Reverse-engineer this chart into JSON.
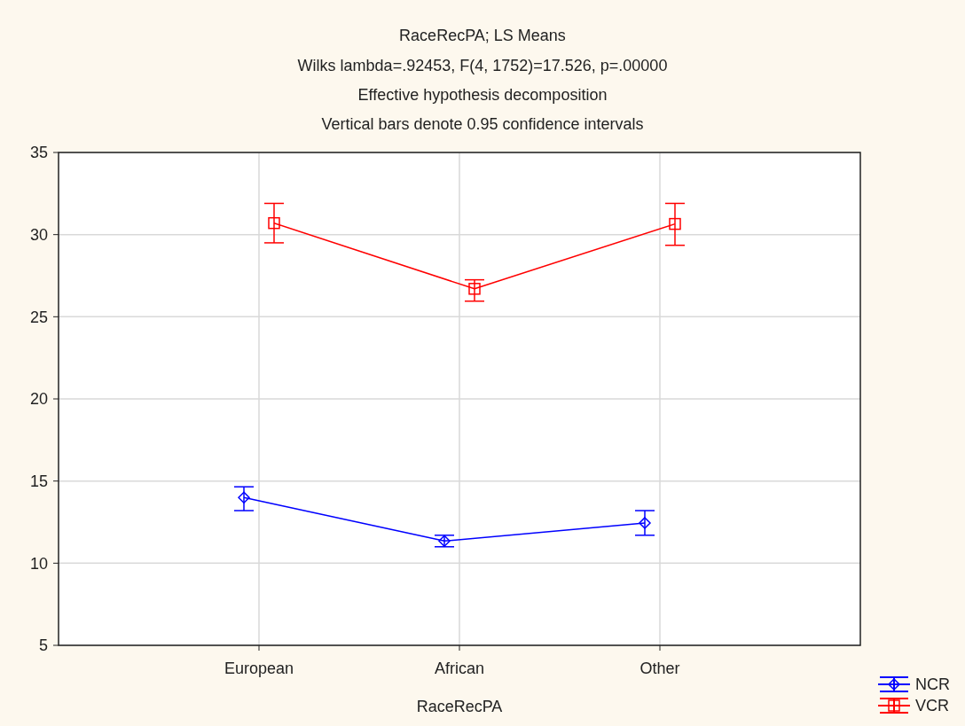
{
  "chart_data": {
    "type": "line",
    "title": "RaceRecPA; LS Means",
    "subtitle": "Wilks lambda=.92453, F(4, 1752)=17.526, p=.00000\nEffective hypothesis decomposition\nVertical bars denote 0.95 confidence intervals",
    "xlabel": "RaceRecPA",
    "categories": [
      "European",
      "African",
      "Other"
    ],
    "ylim": [
      5,
      35
    ],
    "yticks": [
      5,
      10,
      15,
      20,
      25,
      30,
      35
    ],
    "grid": true,
    "legend": "bottom right",
    "series": [
      {
        "name": "NCR",
        "color": "#0000ff",
        "marker": "diamond",
        "values": [
          14.0,
          11.35,
          12.45
        ],
        "errors": [
          [
            13.2,
            14.65
          ],
          [
            11.0,
            11.7
          ],
          [
            11.7,
            13.2
          ]
        ]
      },
      {
        "name": "VCR",
        "color": "#ff0000",
        "marker": "square",
        "values": [
          30.7,
          26.7,
          30.65
        ],
        "errors": [
          [
            29.5,
            31.9
          ],
          [
            25.95,
            27.25
          ],
          [
            29.35,
            31.9
          ]
        ]
      }
    ]
  }
}
